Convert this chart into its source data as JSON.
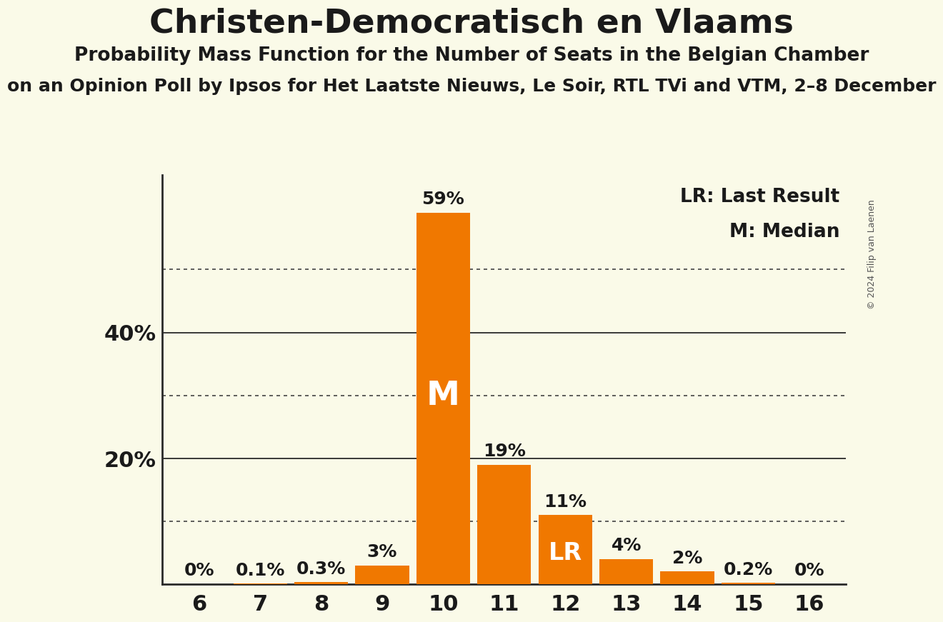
{
  "title": "Christen-Democratisch en Vlaams",
  "subtitle": "Probability Mass Function for the Number of Seats in the Belgian Chamber",
  "third_line": "on an Opinion Poll by Ipsos for Het Laatste Nieuws, Le Soir, RTL TVi and VTM, 2–8 December",
  "copyright": "© 2024 Filip van Laenen",
  "categories": [
    6,
    7,
    8,
    9,
    10,
    11,
    12,
    13,
    14,
    15,
    16
  ],
  "values": [
    0.0,
    0.1,
    0.3,
    3.0,
    59.0,
    19.0,
    11.0,
    4.0,
    2.0,
    0.2,
    0.0
  ],
  "bar_color": "#f07800",
  "background_color": "#fafae8",
  "median_bar": 10,
  "last_result_bar": 12,
  "label_color_dark": "#1a1a1a",
  "label_color_light": "#ffffff",
  "legend_lr": "LR: Last Result",
  "legend_m": "M: Median",
  "ylim": [
    0,
    65
  ],
  "yticks": [
    20,
    40
  ],
  "ytick_labels": [
    "20%",
    "40%"
  ],
  "dotted_yticks": [
    10,
    30,
    50
  ],
  "title_fontsize": 34,
  "subtitle_fontsize": 19,
  "thirdline_fontsize": 18,
  "bar_label_fontsize": 18,
  "axis_label_fontsize": 22,
  "legend_fontsize": 19,
  "m_fontsize": 34,
  "lr_fontsize": 24
}
